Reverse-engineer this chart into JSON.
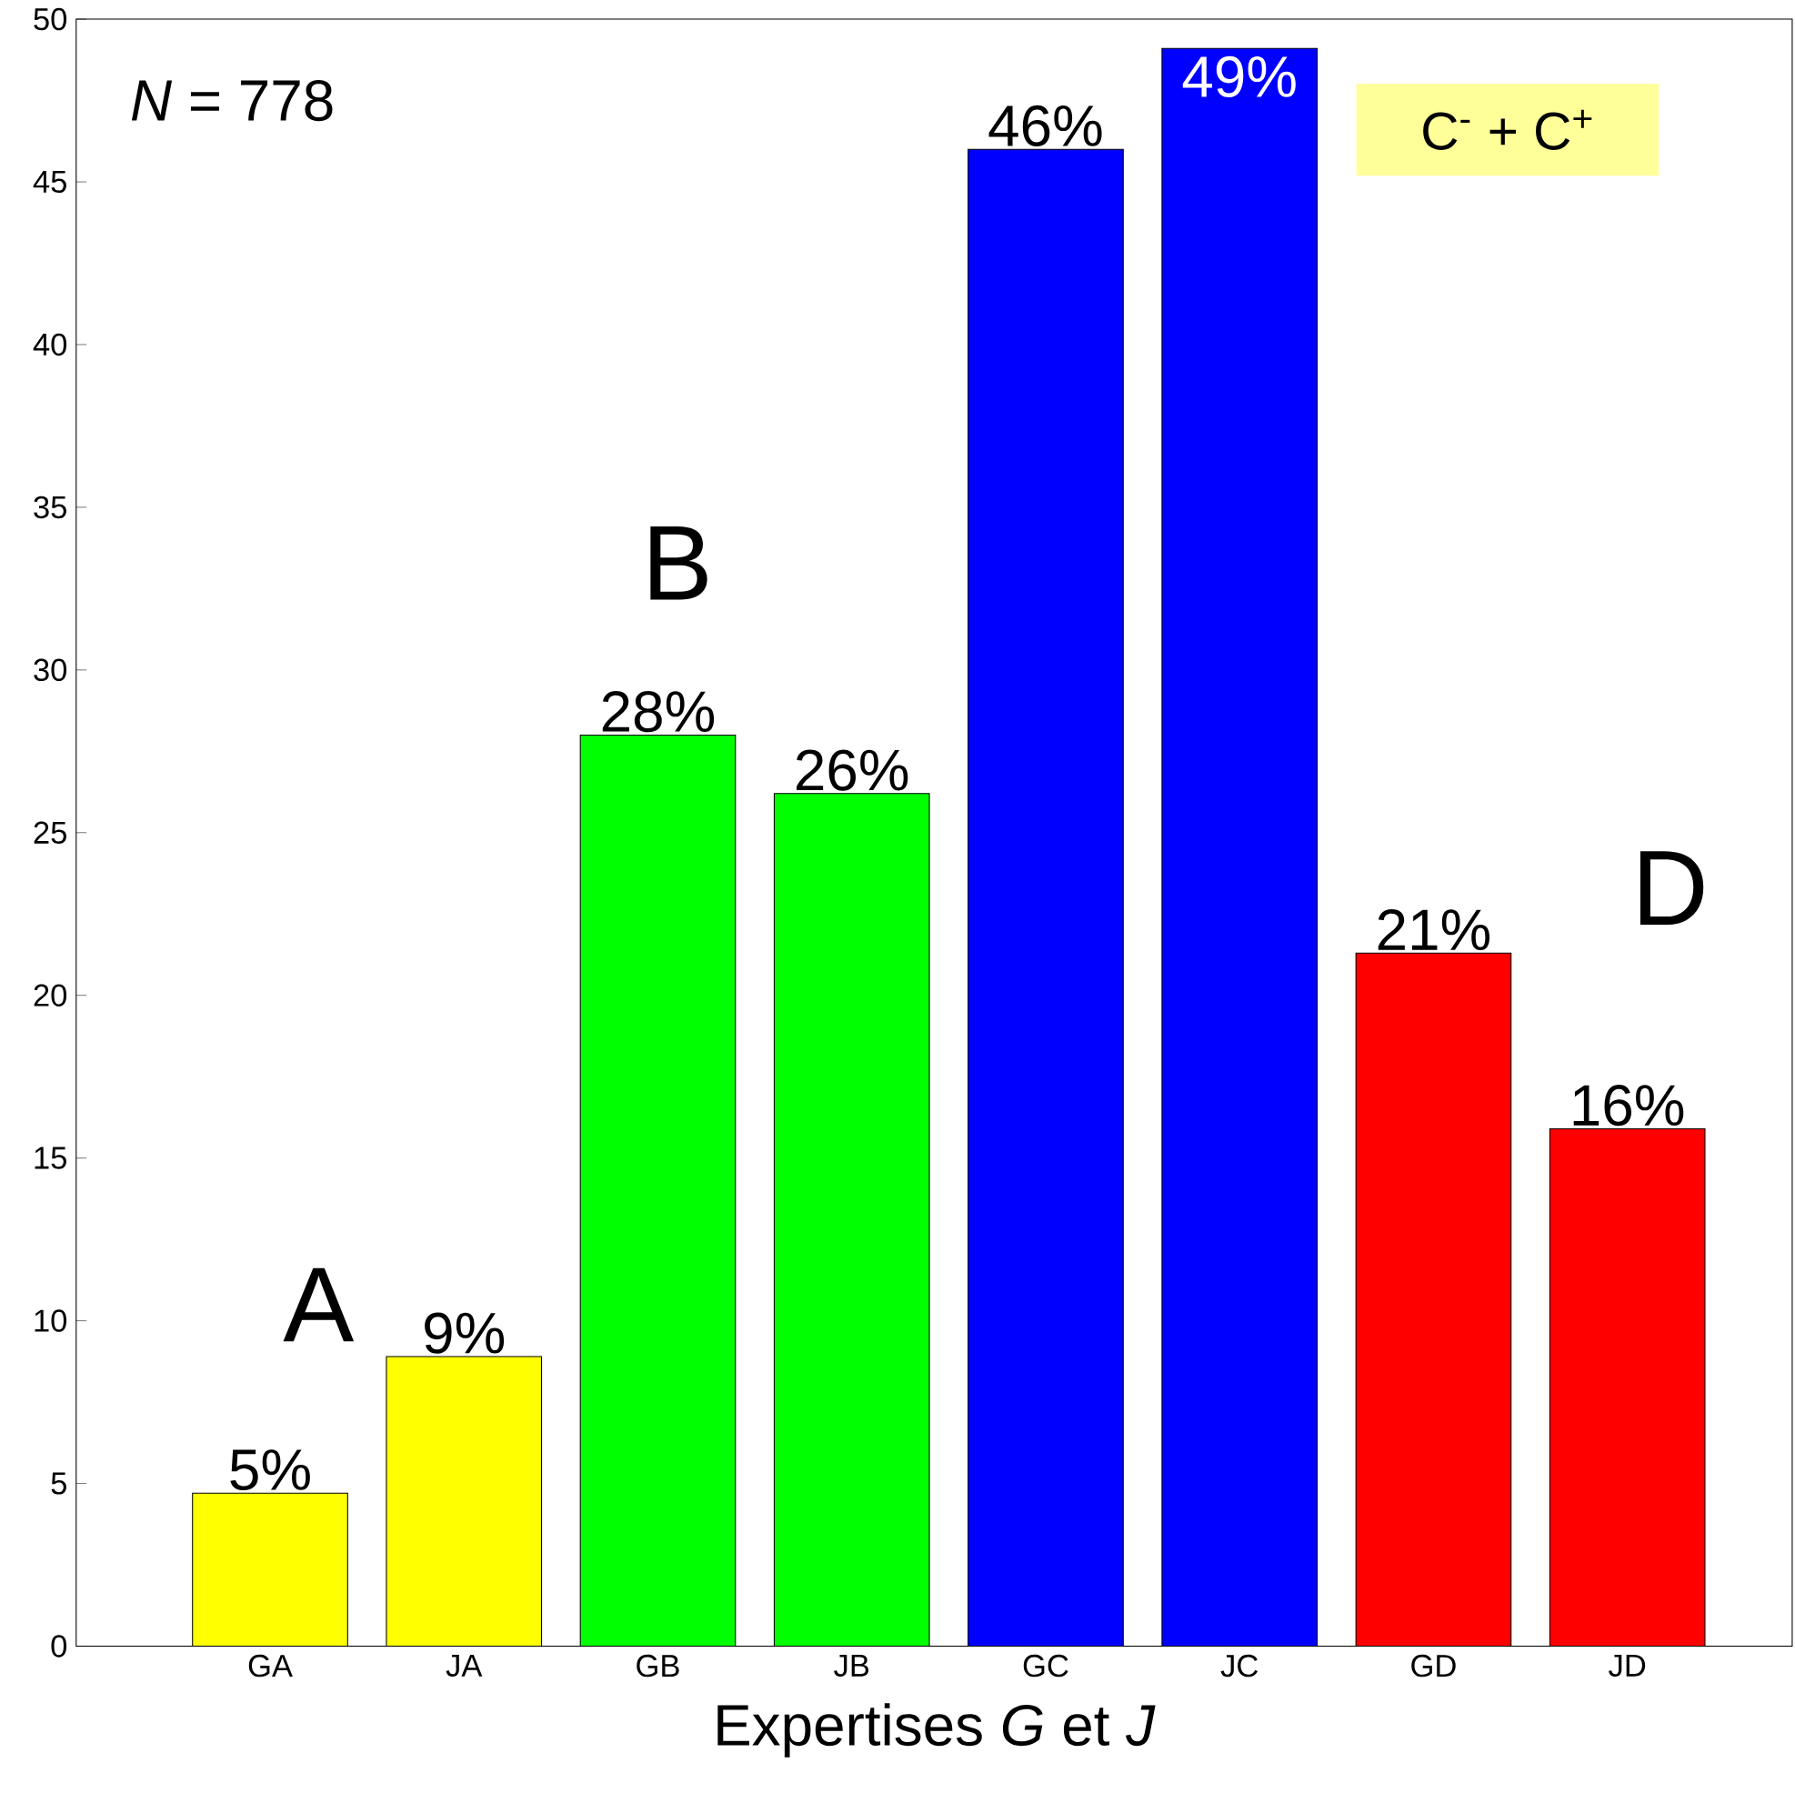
{
  "chart_data": {
    "type": "bar",
    "xlabel": "Expertises *G* et *J*",
    "categories": [
      "GA",
      "JA",
      "GB",
      "JB",
      "GC",
      "JC",
      "GD",
      "JD"
    ],
    "values": [
      4.7,
      8.9,
      28,
      26.2,
      46,
      49.1,
      21.3,
      15.9
    ],
    "colors": [
      "#ffff00",
      "#ffff00",
      "#00ff00",
      "#00ff00",
      "#0000ff",
      "#0000ff",
      "#ff0000",
      "#ff0000"
    ],
    "value_labels": [
      "5%",
      "9%",
      "28%",
      "26%",
      "46%",
      "49%",
      "21%",
      "16%"
    ],
    "annotations": [
      "*N* = 778",
      "A",
      "B",
      "C$^{-}$ + C$^{+}$",
      "D"
    ],
    "ylim": [
      0,
      50
    ],
    "yticks": [
      0,
      5,
      10,
      15,
      20,
      25,
      30,
      35,
      40,
      45,
      50
    ],
    "grid": false
  }
}
